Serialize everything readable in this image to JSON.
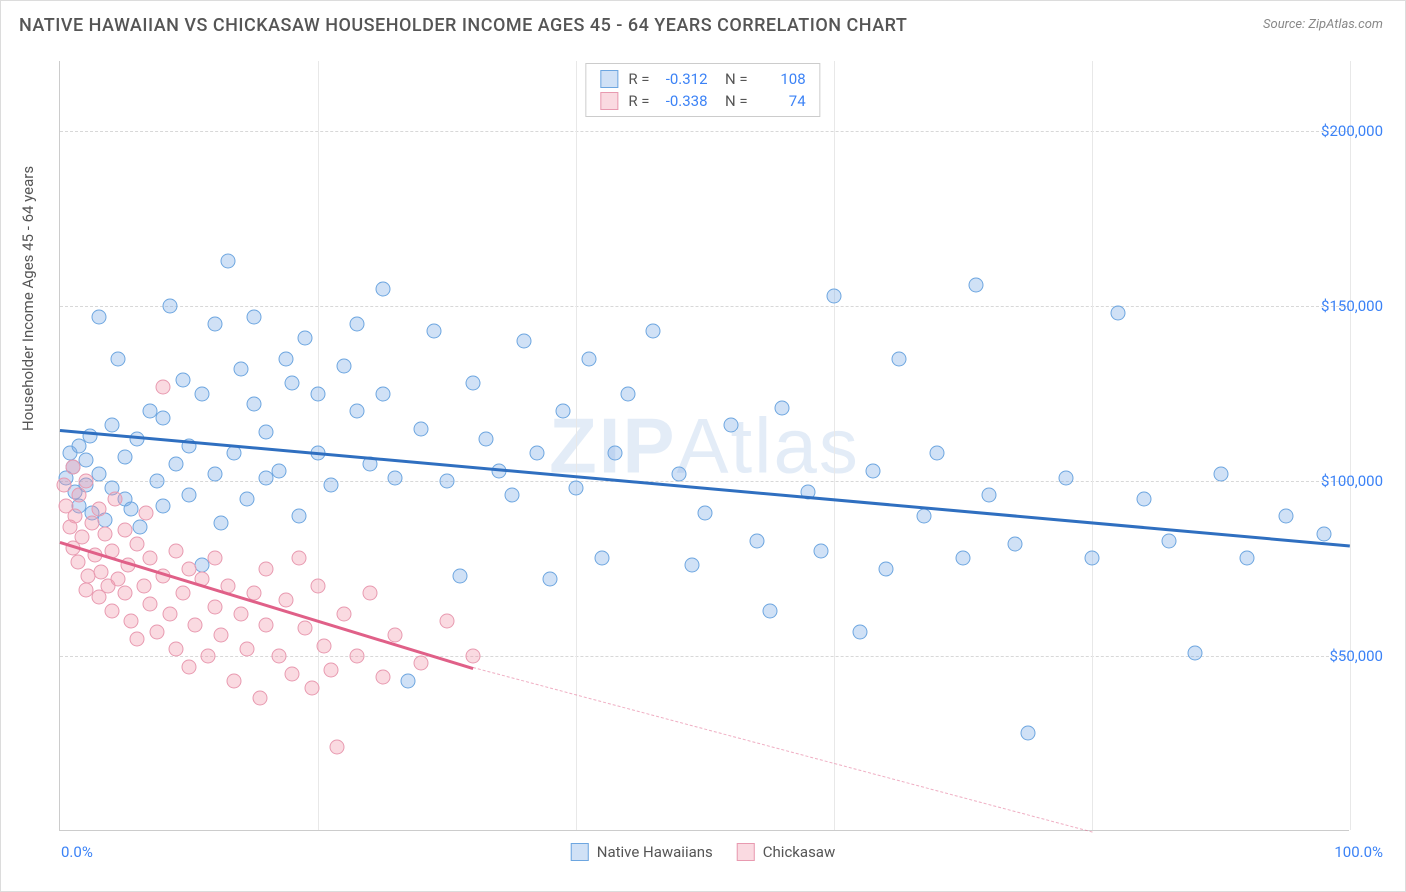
{
  "title": "NATIVE HAWAIIAN VS CHICKASAW HOUSEHOLDER INCOME AGES 45 - 64 YEARS CORRELATION CHART",
  "source": "Source: ZipAtlas.com",
  "ylabel": "Householder Income Ages 45 - 64 years",
  "watermark_a": "ZIP",
  "watermark_b": "Atlas",
  "chart": {
    "type": "scatter",
    "xlim": [
      0,
      100
    ],
    "ylim": [
      0,
      220000
    ],
    "x_ticks": [
      0,
      20,
      40,
      60,
      80,
      100
    ],
    "x_tick_labels_shown": {
      "min": "0.0%",
      "max": "100.0%"
    },
    "y_ticks": [
      50000,
      100000,
      150000,
      200000
    ],
    "y_tick_labels": [
      "$50,000",
      "$100,000",
      "$150,000",
      "$200,000"
    ],
    "grid_color": "#d8d8d8",
    "background_color": "#ffffff",
    "axis_color": "#cccccc",
    "tick_label_color": "#3b82f6",
    "text_color": "#555555",
    "point_radius": 7.5,
    "series": [
      {
        "name": "Native Hawaiians",
        "fill": "rgba(120,170,230,0.35)",
        "stroke": "#6da6e0",
        "line_color": "#2f6fc0",
        "R": "-0.312",
        "N": "108",
        "trend": {
          "x1": 0,
          "y1": 115000,
          "x2": 100,
          "y2": 82000
        },
        "points": [
          [
            0.5,
            101000
          ],
          [
            0.8,
            108000
          ],
          [
            1,
            104000
          ],
          [
            1.2,
            97000
          ],
          [
            1.5,
            93000
          ],
          [
            1.5,
            110000
          ],
          [
            2,
            106000
          ],
          [
            2,
            99000
          ],
          [
            2.3,
            113000
          ],
          [
            2.5,
            91000
          ],
          [
            3,
            147000
          ],
          [
            3,
            102000
          ],
          [
            3.5,
            89000
          ],
          [
            4,
            116000
          ],
          [
            4,
            98000
          ],
          [
            4.5,
            135000
          ],
          [
            5,
            107000
          ],
          [
            5,
            95000
          ],
          [
            5.5,
            92000
          ],
          [
            6,
            112000
          ],
          [
            6.2,
            87000
          ],
          [
            7,
            120000
          ],
          [
            7.5,
            100000
          ],
          [
            8,
            118000
          ],
          [
            8,
            93000
          ],
          [
            8.5,
            150000
          ],
          [
            9,
            105000
          ],
          [
            9.5,
            129000
          ],
          [
            10,
            96000
          ],
          [
            10,
            110000
          ],
          [
            11,
            125000
          ],
          [
            11,
            76000
          ],
          [
            12,
            145000
          ],
          [
            12,
            102000
          ],
          [
            12.5,
            88000
          ],
          [
            13,
            163000
          ],
          [
            13.5,
            108000
          ],
          [
            14,
            132000
          ],
          [
            14.5,
            95000
          ],
          [
            15,
            122000
          ],
          [
            15,
            147000
          ],
          [
            16,
            101000
          ],
          [
            16,
            114000
          ],
          [
            17,
            103000
          ],
          [
            17.5,
            135000
          ],
          [
            18,
            128000
          ],
          [
            18.5,
            90000
          ],
          [
            19,
            141000
          ],
          [
            20,
            108000
          ],
          [
            20,
            125000
          ],
          [
            21,
            99000
          ],
          [
            22,
            133000
          ],
          [
            23,
            120000
          ],
          [
            23,
            145000
          ],
          [
            24,
            105000
          ],
          [
            25,
            125000
          ],
          [
            25,
            155000
          ],
          [
            26,
            101000
          ],
          [
            27,
            43000
          ],
          [
            28,
            115000
          ],
          [
            29,
            143000
          ],
          [
            30,
            100000
          ],
          [
            31,
            73000
          ],
          [
            32,
            128000
          ],
          [
            33,
            112000
          ],
          [
            34,
            103000
          ],
          [
            35,
            96000
          ],
          [
            36,
            140000
          ],
          [
            37,
            108000
          ],
          [
            38,
            72000
          ],
          [
            39,
            120000
          ],
          [
            40,
            98000
          ],
          [
            41,
            135000
          ],
          [
            42,
            78000
          ],
          [
            43,
            108000
          ],
          [
            44,
            125000
          ],
          [
            46,
            143000
          ],
          [
            48,
            102000
          ],
          [
            49,
            76000
          ],
          [
            50,
            91000
          ],
          [
            52,
            116000
          ],
          [
            54,
            83000
          ],
          [
            55,
            63000
          ],
          [
            56,
            121000
          ],
          [
            58,
            97000
          ],
          [
            59,
            80000
          ],
          [
            60,
            153000
          ],
          [
            62,
            57000
          ],
          [
            63,
            103000
          ],
          [
            64,
            75000
          ],
          [
            65,
            135000
          ],
          [
            67,
            90000
          ],
          [
            68,
            108000
          ],
          [
            70,
            78000
          ],
          [
            71,
            156000
          ],
          [
            72,
            96000
          ],
          [
            74,
            82000
          ],
          [
            75,
            28000
          ],
          [
            78,
            101000
          ],
          [
            80,
            78000
          ],
          [
            82,
            148000
          ],
          [
            84,
            95000
          ],
          [
            86,
            83000
          ],
          [
            88,
            51000
          ],
          [
            90,
            102000
          ],
          [
            92,
            78000
          ],
          [
            95,
            90000
          ],
          [
            98,
            85000
          ]
        ]
      },
      {
        "name": "Chickasaw",
        "fill": "rgba(240,150,170,0.35)",
        "stroke": "#e89ab0",
        "line_color": "#e06088",
        "R": "-0.338",
        "N": "74",
        "trend": {
          "x1": 0,
          "y1": 83000,
          "x2": 32,
          "y2": 47000
        },
        "trend_extrapolate": {
          "x1": 32,
          "y1": 47000,
          "x2": 80,
          "y2": 0
        },
        "points": [
          [
            0.3,
            99000
          ],
          [
            0.5,
            93000
          ],
          [
            0.8,
            87000
          ],
          [
            1,
            104000
          ],
          [
            1,
            81000
          ],
          [
            1.2,
            90000
          ],
          [
            1.4,
            77000
          ],
          [
            1.5,
            96000
          ],
          [
            1.7,
            84000
          ],
          [
            2,
            69000
          ],
          [
            2,
            100000
          ],
          [
            2.2,
            73000
          ],
          [
            2.5,
            88000
          ],
          [
            2.7,
            79000
          ],
          [
            3,
            67000
          ],
          [
            3,
            92000
          ],
          [
            3.2,
            74000
          ],
          [
            3.5,
            85000
          ],
          [
            3.7,
            70000
          ],
          [
            4,
            80000
          ],
          [
            4,
            63000
          ],
          [
            4.3,
            95000
          ],
          [
            4.5,
            72000
          ],
          [
            5,
            68000
          ],
          [
            5,
            86000
          ],
          [
            5.3,
            76000
          ],
          [
            5.5,
            60000
          ],
          [
            6,
            82000
          ],
          [
            6,
            55000
          ],
          [
            6.5,
            70000
          ],
          [
            6.7,
            91000
          ],
          [
            7,
            65000
          ],
          [
            7,
            78000
          ],
          [
            7.5,
            57000
          ],
          [
            8,
            73000
          ],
          [
            8,
            127000
          ],
          [
            8.5,
            62000
          ],
          [
            9,
            52000
          ],
          [
            9,
            80000
          ],
          [
            9.5,
            68000
          ],
          [
            10,
            75000
          ],
          [
            10,
            47000
          ],
          [
            10.5,
            59000
          ],
          [
            11,
            72000
          ],
          [
            11.5,
            50000
          ],
          [
            12,
            64000
          ],
          [
            12,
            78000
          ],
          [
            12.5,
            56000
          ],
          [
            13,
            70000
          ],
          [
            13.5,
            43000
          ],
          [
            14,
            62000
          ],
          [
            14.5,
            52000
          ],
          [
            15,
            68000
          ],
          [
            15.5,
            38000
          ],
          [
            16,
            59000
          ],
          [
            16,
            75000
          ],
          [
            17,
            50000
          ],
          [
            17.5,
            66000
          ],
          [
            18,
            45000
          ],
          [
            18.5,
            78000
          ],
          [
            19,
            58000
          ],
          [
            19.5,
            41000
          ],
          [
            20,
            70000
          ],
          [
            20.5,
            53000
          ],
          [
            21,
            46000
          ],
          [
            21.5,
            24000
          ],
          [
            22,
            62000
          ],
          [
            23,
            50000
          ],
          [
            24,
            68000
          ],
          [
            25,
            44000
          ],
          [
            26,
            56000
          ],
          [
            28,
            48000
          ],
          [
            30,
            60000
          ],
          [
            32,
            50000
          ]
        ]
      }
    ]
  }
}
